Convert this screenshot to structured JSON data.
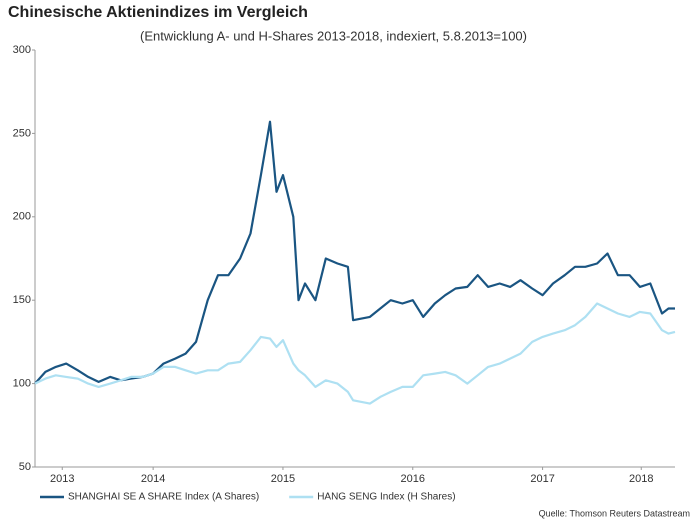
{
  "chart_data": {
    "type": "line",
    "title": "Chinesische Aktienindizes im Vergleich",
    "subtitle": "(Entwicklung A- und H-Shares 2013-2018, indexiert, 5.8.2013=100)",
    "source": "Quelle: Thomson Reuters Datastream",
    "x": [
      2013.59,
      2013.67,
      2013.75,
      2013.83,
      2013.92,
      2014.0,
      2014.08,
      2014.17,
      2014.25,
      2014.33,
      2014.42,
      2014.5,
      2014.58,
      2014.67,
      2014.75,
      2014.83,
      2014.92,
      2015.0,
      2015.08,
      2015.17,
      2015.25,
      2015.33,
      2015.4,
      2015.45,
      2015.5,
      2015.58,
      2015.62,
      2015.67,
      2015.75,
      2015.83,
      2015.92,
      2016.0,
      2016.04,
      2016.17,
      2016.25,
      2016.33,
      2016.42,
      2016.5,
      2016.58,
      2016.67,
      2016.75,
      2016.83,
      2016.92,
      2017.0,
      2017.08,
      2017.17,
      2017.25,
      2017.33,
      2017.42,
      2017.5,
      2017.58,
      2017.67,
      2017.75,
      2017.83,
      2017.92,
      2018.0,
      2018.08,
      2018.17,
      2018.25,
      2018.33,
      2018.42,
      2018.47,
      2018.52
    ],
    "series": [
      {
        "name": "SHANGHAI SE A SHARE Index (A Shares)",
        "color": "#1a5582",
        "values": [
          100,
          107,
          110,
          112,
          108,
          104,
          101,
          104,
          102,
          103,
          104,
          106,
          112,
          115,
          118,
          125,
          150,
          165,
          165,
          175,
          190,
          225,
          257,
          215,
          225,
          200,
          150,
          160,
          150,
          175,
          172,
          170,
          138,
          140,
          145,
          150,
          148,
          150,
          140,
          148,
          153,
          157,
          158,
          165,
          158,
          160,
          158,
          162,
          157,
          153,
          160,
          165,
          170,
          170,
          172,
          178,
          165,
          165,
          158,
          160,
          142,
          145,
          145
        ]
      },
      {
        "name": "HANG SENG Index (H Shares)",
        "color": "#aee0f2",
        "values": [
          100,
          103,
          105,
          104,
          103,
          100,
          98,
          100,
          102,
          104,
          104,
          106,
          110,
          110,
          108,
          106,
          108,
          108,
          112,
          113,
          120,
          128,
          127,
          122,
          126,
          112,
          108,
          105,
          98,
          102,
          100,
          95,
          90,
          88,
          92,
          95,
          98,
          98,
          105,
          106,
          107,
          105,
          100,
          105,
          110,
          112,
          115,
          118,
          125,
          128,
          130,
          132,
          135,
          140,
          148,
          145,
          142,
          140,
          143,
          142,
          132,
          130,
          131
        ]
      }
    ],
    "xlim": [
      2013.59,
      2018.52
    ],
    "xticks": [
      {
        "value": 2013.8,
        "label": "2013"
      },
      {
        "value": 2014.5,
        "label": "2014"
      },
      {
        "value": 2015.5,
        "label": "2015"
      },
      {
        "value": 2016.5,
        "label": "2016"
      },
      {
        "value": 2017.5,
        "label": "2017"
      },
      {
        "value": 2018.26,
        "label": "2018"
      }
    ],
    "ylim": [
      50,
      300
    ],
    "yticks": [
      50,
      100,
      150,
      200,
      250,
      300
    ],
    "grid": false
  }
}
